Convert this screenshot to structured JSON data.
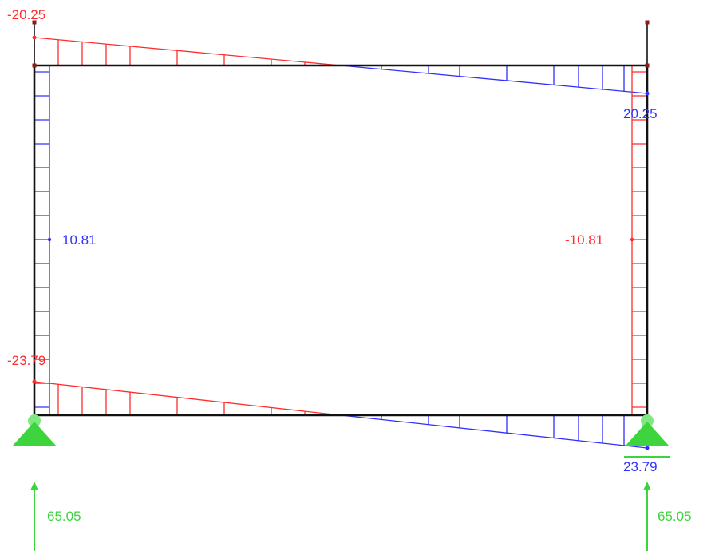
{
  "diagram": {
    "top_left_moment": "-20.25",
    "top_right_moment": "20.25",
    "left_column_moment": "10.81",
    "right_column_moment": "-10.81",
    "bottom_left_moment": "-23.79",
    "bottom_right_moment": "23.79",
    "left_reaction": "65.05",
    "right_reaction": "65.05"
  },
  "colors": {
    "frame": "#111111",
    "negative": "#ff2d2d",
    "positive": "#3030ff",
    "support": "#3ed43e"
  }
}
